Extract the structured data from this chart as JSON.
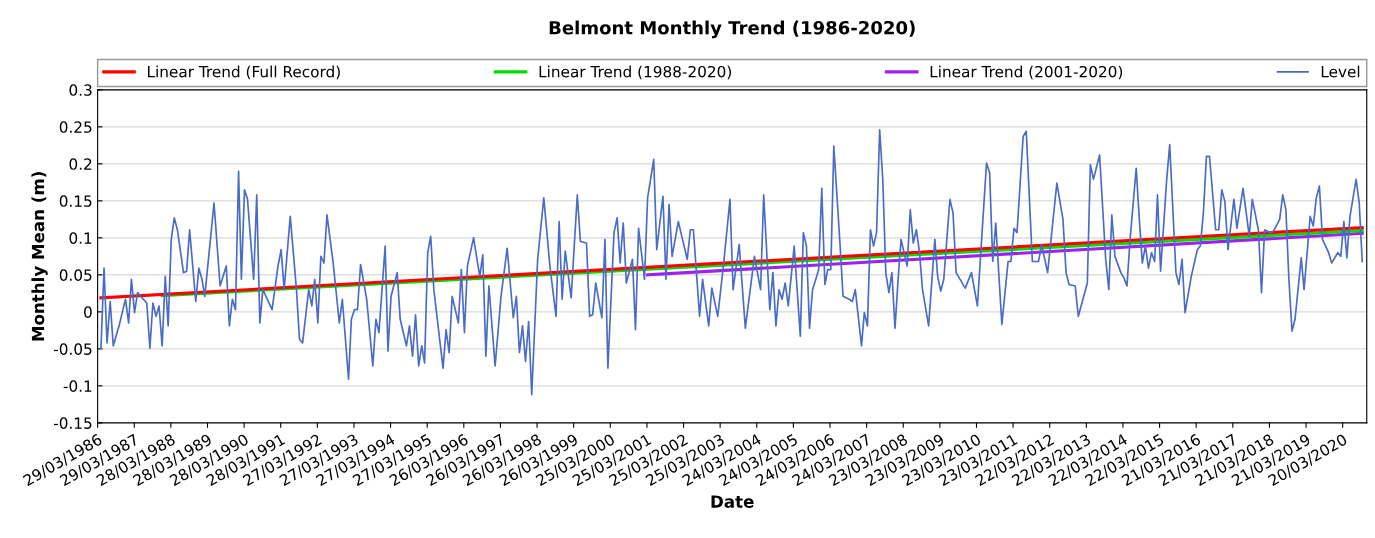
{
  "chart_data": {
    "type": "line",
    "title": "Belmont Monthly Trend (1986-2020)",
    "xlabel": "Date",
    "ylabel": "Monthly Mean (m)",
    "xlim": [
      "1986-03-29",
      "2020-11-15"
    ],
    "ylim": [
      -0.15,
      0.3
    ],
    "yticks": [
      -0.15,
      -0.1,
      -0.05,
      0,
      0.05,
      0.1,
      0.15,
      0.2,
      0.25,
      0.3
    ],
    "xticks": [
      {
        "value": "1986-03-29",
        "label": "29/03/1986"
      },
      {
        "value": "1987-03-29",
        "label": "29/03/1987"
      },
      {
        "value": "1988-03-28",
        "label": "28/03/1988"
      },
      {
        "value": "1989-03-28",
        "label": "28/03/1989"
      },
      {
        "value": "1990-03-28",
        "label": "28/03/1990"
      },
      {
        "value": "1991-03-28",
        "label": "28/03/1991"
      },
      {
        "value": "1992-03-27",
        "label": "27/03/1992"
      },
      {
        "value": "1993-03-27",
        "label": "27/03/1993"
      },
      {
        "value": "1994-03-27",
        "label": "27/03/1994"
      },
      {
        "value": "1995-03-27",
        "label": "27/03/1995"
      },
      {
        "value": "1996-03-26",
        "label": "26/03/1996"
      },
      {
        "value": "1997-03-26",
        "label": "26/03/1997"
      },
      {
        "value": "1998-03-26",
        "label": "26/03/1998"
      },
      {
        "value": "1999-03-26",
        "label": "26/03/1999"
      },
      {
        "value": "2000-03-25",
        "label": "25/03/2000"
      },
      {
        "value": "2001-03-25",
        "label": "25/03/2001"
      },
      {
        "value": "2002-03-25",
        "label": "25/03/2002"
      },
      {
        "value": "2003-03-25",
        "label": "25/03/2003"
      },
      {
        "value": "2004-03-24",
        "label": "24/03/2004"
      },
      {
        "value": "2005-03-24",
        "label": "24/03/2005"
      },
      {
        "value": "2006-03-24",
        "label": "24/03/2006"
      },
      {
        "value": "2007-03-24",
        "label": "24/03/2007"
      },
      {
        "value": "2008-03-23",
        "label": "23/03/2008"
      },
      {
        "value": "2009-03-23",
        "label": "23/03/2009"
      },
      {
        "value": "2010-03-23",
        "label": "23/03/2010"
      },
      {
        "value": "2011-03-23",
        "label": "23/03/2011"
      },
      {
        "value": "2012-03-22",
        "label": "22/03/2012"
      },
      {
        "value": "2013-03-22",
        "label": "22/03/2013"
      },
      {
        "value": "2014-03-22",
        "label": "22/03/2014"
      },
      {
        "value": "2015-03-22",
        "label": "22/03/2015"
      },
      {
        "value": "2016-03-21",
        "label": "21/03/2016"
      },
      {
        "value": "2017-03-21",
        "label": "21/03/2017"
      },
      {
        "value": "2018-03-21",
        "label": "21/03/2018"
      },
      {
        "value": "2019-03-21",
        "label": "21/03/2019"
      },
      {
        "value": "2020-03-20",
        "label": "20/03/2020"
      }
    ],
    "grid": "y",
    "legend": "top",
    "marker": "none",
    "line_style": "solid",
    "series": [
      {
        "name": "Linear Trend (Full Record)",
        "color": "#ff0000",
        "x": [
          "1986-05",
          "2020-10"
        ],
        "values": [
          0.019,
          0.114
        ]
      },
      {
        "name": "Linear Trend (1988-2020)",
        "color": "#00dd00",
        "x": [
          "1988-01",
          "2020-10"
        ],
        "values": [
          0.022,
          0.11
        ]
      },
      {
        "name": "Linear Trend (2001-2020)",
        "color": "#a020f0",
        "x": [
          "2001-04",
          "2020-10"
        ],
        "values": [
          0.05,
          0.106
        ]
      },
      {
        "name": "Level",
        "color": "#4a6cc4",
        "x": [
          "1986-05",
          "1986-06",
          "1986-07",
          "1986-08",
          "1986-09",
          "1986-11",
          "1986-12",
          "1987-01",
          "1987-02",
          "1987-03",
          "1987-04",
          "1987-05",
          "1987-06",
          "1987-08",
          "1987-09",
          "1987-10",
          "1987-11",
          "1987-12",
          "1988-01",
          "1988-02",
          "1988-03",
          "1988-04",
          "1988-05",
          "1988-06",
          "1988-08",
          "1988-09",
          "1988-10",
          "1988-11",
          "1988-12",
          "1989-01",
          "1989-02",
          "1989-03",
          "1989-06",
          "1989-08",
          "1989-10",
          "1989-11",
          "1989-12",
          "1990-01",
          "1990-02",
          "1990-03",
          "1990-04",
          "1990-05",
          "1990-07",
          "1990-08",
          "1990-09",
          "1990-10",
          "1990-11",
          "1991-01",
          "1991-03",
          "1991-04",
          "1991-05",
          "1991-07",
          "1991-09",
          "1991-10",
          "1991-11",
          "1992-01",
          "1992-02",
          "1992-03",
          "1992-04",
          "1992-05",
          "1992-06",
          "1992-07",
          "1992-09",
          "1992-11",
          "1992-12",
          "1993-02",
          "1993-03",
          "1993-04",
          "1993-05",
          "1993-06",
          "1993-08",
          "1993-10",
          "1993-11",
          "1993-12",
          "1994-02",
          "1994-03",
          "1994-04",
          "1994-06",
          "1994-07",
          "1994-09",
          "1994-10",
          "1994-11",
          "1994-12",
          "1995-01",
          "1995-02",
          "1995-03",
          "1995-04",
          "1995-05",
          "1995-06",
          "1995-09",
          "1995-10",
          "1995-11",
          "1995-12",
          "1996-02",
          "1996-03",
          "1996-04",
          "1996-05",
          "1996-07",
          "1996-09",
          "1996-10",
          "1996-11",
          "1996-12",
          "1997-02",
          "1997-04",
          "1997-06",
          "1997-08",
          "1997-09",
          "1997-10",
          "1997-11",
          "1997-12",
          "1998-01",
          "1998-02",
          "1998-04",
          "1998-06",
          "1998-08",
          "1998-10",
          "1998-11",
          "1998-12",
          "1999-01",
          "1999-03",
          "1999-05",
          "1999-06",
          "1999-08",
          "1999-09",
          "1999-10",
          "1999-11",
          "2000-01",
          "2000-02",
          "2000-03",
          "2000-05",
          "2000-06",
          "2000-07",
          "2000-08",
          "2000-09",
          "2000-11",
          "2000-12",
          "2001-01",
          "2001-03",
          "2001-04",
          "2001-06",
          "2001-07",
          "2001-09",
          "2001-10",
          "2001-11",
          "2001-12",
          "2002-02",
          "2002-05",
          "2002-06",
          "2002-07",
          "2002-09",
          "2002-10",
          "2002-12",
          "2003-01",
          "2003-03",
          "2003-05",
          "2003-07",
          "2003-08",
          "2003-10",
          "2003-12",
          "2004-03",
          "2004-05",
          "2004-06",
          "2004-08",
          "2004-09",
          "2004-10",
          "2004-11",
          "2004-12",
          "2005-01",
          "2005-02",
          "2005-04",
          "2005-06",
          "2005-07",
          "2005-08",
          "2005-09",
          "2005-10",
          "2005-12",
          "2006-01",
          "2006-02",
          "2006-03",
          "2006-04",
          "2006-05",
          "2006-07",
          "2006-08",
          "2006-10",
          "2006-11",
          "2006-12",
          "2007-02",
          "2007-03",
          "2007-04",
          "2007-05",
          "2007-06",
          "2007-07",
          "2007-08",
          "2007-09",
          "2007-10",
          "2007-11",
          "2007-12",
          "2008-01",
          "2008-02",
          "2008-03",
          "2008-05",
          "2008-06",
          "2008-07",
          "2008-08",
          "2008-09",
          "2008-10",
          "2008-12",
          "2009-02",
          "2009-03",
          "2009-04",
          "2009-05",
          "2009-07",
          "2009-08",
          "2009-09",
          "2009-12",
          "2010-02",
          "2010-04",
          "2010-07",
          "2010-08",
          "2010-09",
          "2010-10",
          "2010-12",
          "2011-02",
          "2011-03",
          "2011-04",
          "2011-05",
          "2011-07",
          "2011-08",
          "2011-10",
          "2011-12",
          "2012-01",
          "2012-03",
          "2012-06",
          "2012-08",
          "2012-09",
          "2012-10",
          "2012-12",
          "2013-01",
          "2013-04",
          "2013-05",
          "2013-06",
          "2013-08",
          "2013-10",
          "2013-11",
          "2013-12",
          "2014-01",
          "2014-03",
          "2014-04",
          "2014-05",
          "2014-06",
          "2014-08",
          "2014-09",
          "2014-10",
          "2014-11",
          "2014-12",
          "2015-01",
          "2015-02",
          "2015-03",
          "2015-04",
          "2015-06",
          "2015-07",
          "2015-09",
          "2015-10",
          "2015-11",
          "2015-12",
          "2016-02",
          "2016-04",
          "2016-05",
          "2016-06",
          "2016-07",
          "2016-08",
          "2016-10",
          "2016-11",
          "2016-12",
          "2017-01",
          "2017-02",
          "2017-04",
          "2017-05",
          "2017-07",
          "2017-09",
          "2017-10",
          "2017-12",
          "2018-01",
          "2018-02",
          "2018-04",
          "2018-05",
          "2018-07",
          "2018-08",
          "2018-09",
          "2018-10",
          "2018-11",
          "2018-12",
          "2019-02",
          "2019-03",
          "2019-04",
          "2019-05",
          "2019-06",
          "2019-07",
          "2019-08",
          "2019-09",
          "2019-11",
          "2019-12",
          "2020-02",
          "2020-03",
          "2020-04",
          "2020-05",
          "2020-06",
          "2020-08",
          "2020-09",
          "2020-10"
        ],
        "values": [
          -0.049,
          0.059,
          -0.042,
          0.014,
          -0.046,
          -0.017,
          0.0,
          0.017,
          -0.015,
          0.044,
          -0.001,
          0.026,
          0.021,
          0.012,
          -0.049,
          0.012,
          -0.006,
          0.008,
          -0.046,
          0.048,
          -0.019,
          0.098,
          0.127,
          0.111,
          0.053,
          0.055,
          0.111,
          0.062,
          0.014,
          0.059,
          0.044,
          0.021,
          0.147,
          0.035,
          0.062,
          -0.019,
          0.017,
          0.003,
          0.19,
          0.044,
          0.165,
          0.152,
          0.044,
          0.158,
          -0.015,
          0.03,
          0.021,
          0.003,
          0.062,
          0.084,
          0.03,
          0.129,
          0.03,
          -0.037,
          -0.042,
          0.03,
          0.008,
          0.044,
          -0.015,
          0.075,
          0.066,
          0.131,
          0.066,
          -0.015,
          0.017,
          -0.091,
          -0.01,
          0.003,
          0.003,
          0.064,
          0.017,
          -0.073,
          -0.01,
          -0.028,
          0.089,
          -0.053,
          0.021,
          0.053,
          -0.01,
          -0.046,
          -0.019,
          -0.06,
          -0.004,
          -0.073,
          -0.046,
          -0.069,
          0.08,
          0.102,
          0.03,
          -0.076,
          -0.024,
          -0.055,
          0.021,
          -0.015,
          0.057,
          -0.028,
          0.062,
          0.1,
          0.048,
          0.077,
          -0.06,
          0.035,
          -0.073,
          0.021,
          0.086,
          -0.008,
          0.021,
          -0.055,
          -0.019,
          -0.067,
          -0.013,
          -0.112,
          0.071,
          0.154,
          0.062,
          -0.006,
          0.122,
          0.017,
          0.082,
          0.019,
          0.158,
          0.095,
          0.093,
          -0.006,
          -0.004,
          0.039,
          -0.008,
          0.098,
          -0.076,
          0.107,
          0.127,
          0.066,
          0.12,
          0.039,
          0.071,
          -0.024,
          0.113,
          0.044,
          0.154,
          0.206,
          0.084,
          0.156,
          0.044,
          0.145,
          0.075,
          0.122,
          0.071,
          0.111,
          0.111,
          -0.006,
          0.044,
          -0.019,
          0.032,
          -0.006,
          0.068,
          0.152,
          0.03,
          0.091,
          -0.022,
          0.075,
          0.03,
          0.158,
          0.003,
          0.053,
          -0.019,
          0.03,
          0.017,
          0.039,
          0.008,
          0.089,
          -0.033,
          0.107,
          0.089,
          -0.022,
          0.03,
          0.057,
          0.167,
          0.037,
          0.057,
          0.057,
          0.224,
          0.093,
          0.021,
          0.017,
          0.014,
          0.03,
          -0.046,
          -0.001,
          -0.019,
          0.111,
          0.089,
          0.107,
          0.246,
          0.179,
          0.053,
          0.026,
          0.053,
          -0.022,
          0.044,
          0.098,
          0.062,
          0.138,
          0.093,
          0.111,
          0.08,
          0.03,
          -0.019,
          0.098,
          0.048,
          0.028,
          0.044,
          0.152,
          0.134,
          0.053,
          0.032,
          0.053,
          0.008,
          0.201,
          0.188,
          0.068,
          0.12,
          -0.017,
          0.068,
          0.068,
          0.113,
          0.107,
          0.237,
          0.244,
          0.068,
          0.068,
          0.091,
          0.053,
          0.174,
          0.125,
          0.053,
          0.037,
          0.035,
          -0.006,
          0.039,
          0.199,
          0.179,
          0.212,
          0.071,
          0.03,
          0.131,
          0.075,
          0.053,
          0.046,
          0.035,
          0.098,
          0.194,
          0.125,
          0.066,
          0.089,
          0.059,
          0.08,
          0.068,
          0.158,
          0.055,
          0.179,
          0.226,
          0.053,
          0.037,
          0.071,
          -0.001,
          0.048,
          0.084,
          0.089,
          0.134,
          0.21,
          0.21,
          0.111,
          0.111,
          0.165,
          0.149,
          0.084,
          0.152,
          0.113,
          0.167,
          0.102,
          0.152,
          0.111,
          0.026,
          0.111,
          0.107,
          0.109,
          0.125,
          0.158,
          0.138,
          0.044,
          -0.026,
          -0.01,
          0.073,
          0.03,
          0.08,
          0.129,
          0.116,
          0.154,
          0.17,
          0.098,
          0.08,
          0.066,
          0.08,
          0.075,
          0.122,
          0.073,
          0.129,
          0.179,
          0.147,
          0.068
        ]
      }
    ]
  }
}
